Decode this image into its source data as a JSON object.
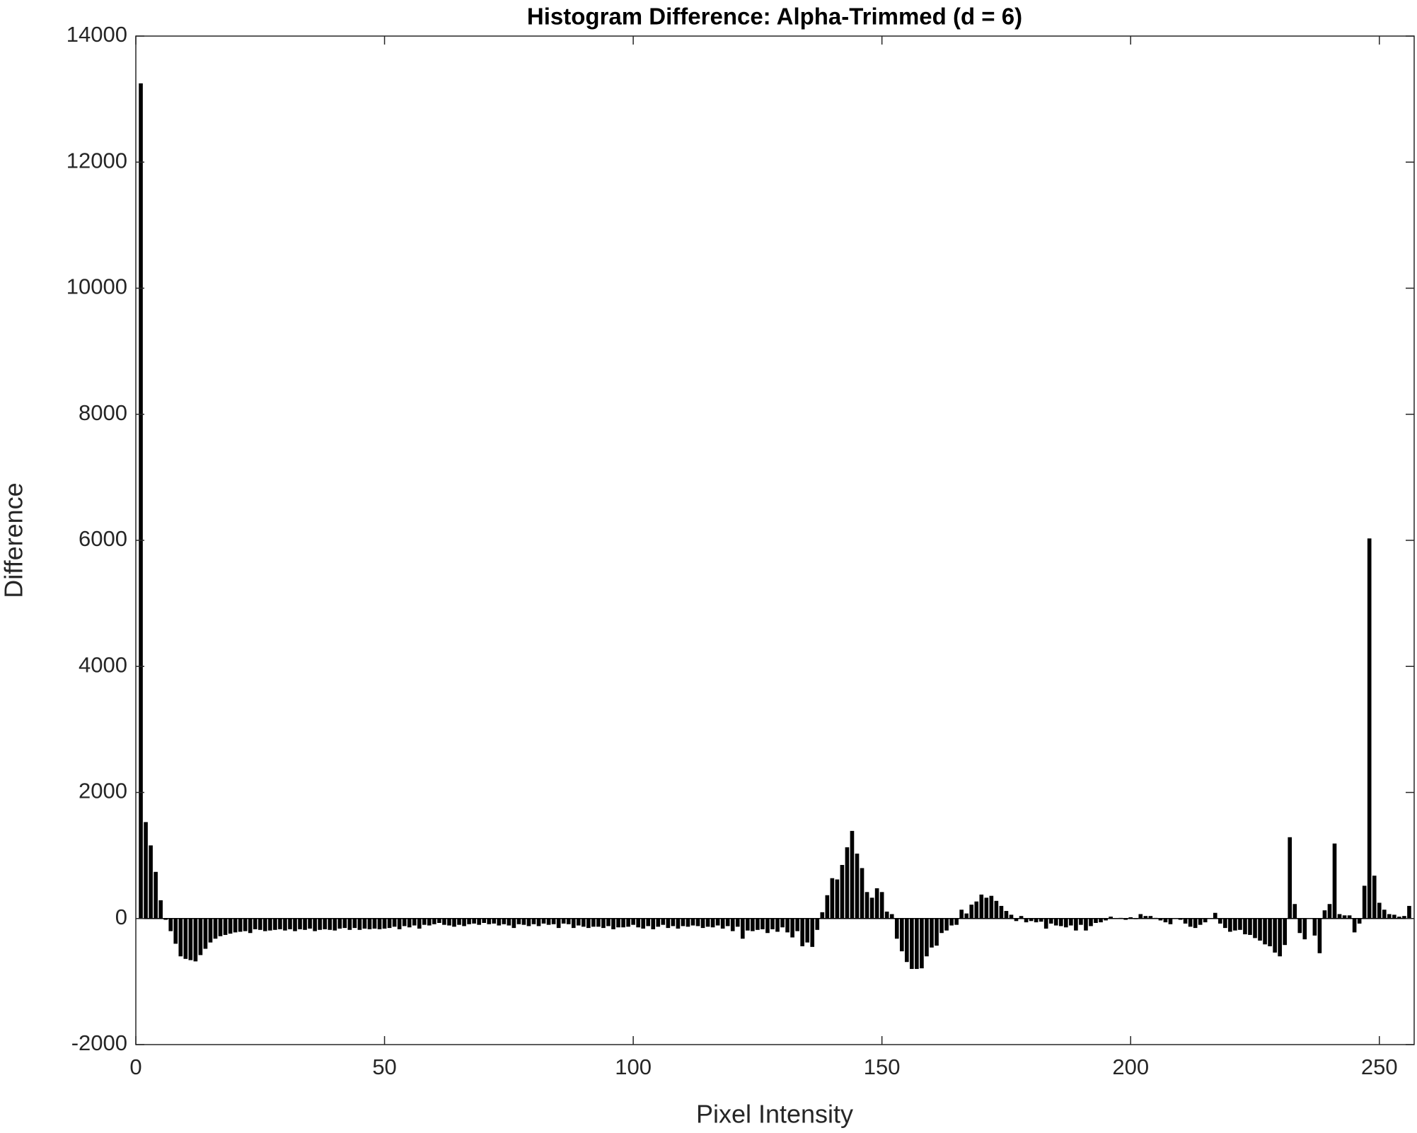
{
  "chart_data": {
    "type": "bar",
    "title": "Histogram Difference: Alpha-Trimmed (d = 6)",
    "x_label": "Pixel Intensity",
    "y_label": "Difference",
    "color": "#000000",
    "xlim": [
      0,
      257
    ],
    "ylim": [
      -2000,
      14000
    ],
    "xticks": [
      0,
      50,
      100,
      150,
      200,
      250
    ],
    "yticks": [
      -2000,
      0,
      2000,
      4000,
      6000,
      8000,
      10000,
      12000,
      14000
    ],
    "grid": false,
    "x": [
      1,
      2,
      3,
      4,
      5,
      6,
      7,
      8,
      9,
      10,
      11,
      12,
      13,
      14,
      15,
      16,
      17,
      18,
      19,
      20,
      21,
      22,
      23,
      24,
      25,
      26,
      27,
      28,
      29,
      30,
      31,
      32,
      33,
      34,
      35,
      36,
      37,
      38,
      39,
      40,
      41,
      42,
      43,
      44,
      45,
      46,
      47,
      48,
      49,
      50,
      51,
      52,
      53,
      54,
      55,
      56,
      57,
      58,
      59,
      60,
      61,
      62,
      63,
      64,
      65,
      66,
      67,
      68,
      69,
      70,
      71,
      72,
      73,
      74,
      75,
      76,
      77,
      78,
      79,
      80,
      81,
      82,
      83,
      84,
      85,
      86,
      87,
      88,
      89,
      90,
      91,
      92,
      93,
      94,
      95,
      96,
      97,
      98,
      99,
      100,
      101,
      102,
      103,
      104,
      105,
      106,
      107,
      108,
      109,
      110,
      111,
      112,
      113,
      114,
      115,
      116,
      117,
      118,
      119,
      120,
      121,
      122,
      123,
      124,
      125,
      126,
      127,
      128,
      129,
      130,
      131,
      132,
      133,
      134,
      135,
      136,
      137,
      138,
      139,
      140,
      141,
      142,
      143,
      144,
      145,
      146,
      147,
      148,
      149,
      150,
      151,
      152,
      153,
      154,
      155,
      156,
      157,
      158,
      159,
      160,
      161,
      162,
      163,
      164,
      165,
      166,
      167,
      168,
      169,
      170,
      171,
      172,
      173,
      174,
      175,
      176,
      177,
      178,
      179,
      180,
      181,
      182,
      183,
      184,
      185,
      186,
      187,
      188,
      189,
      190,
      191,
      192,
      193,
      194,
      195,
      196,
      197,
      198,
      199,
      200,
      201,
      202,
      203,
      204,
      205,
      206,
      207,
      208,
      209,
      210,
      211,
      212,
      213,
      214,
      215,
      216,
      217,
      218,
      219,
      220,
      221,
      222,
      223,
      224,
      225,
      226,
      227,
      228,
      229,
      230,
      231,
      232,
      233,
      234,
      235,
      236,
      237,
      238,
      239,
      240,
      241,
      242,
      243,
      244,
      245,
      246,
      247,
      248,
      249,
      250,
      251,
      252,
      253,
      254,
      255,
      256
    ],
    "values": [
      13250,
      1530,
      1160,
      740,
      290,
      -20,
      -200,
      -400,
      -600,
      -640,
      -660,
      -680,
      -580,
      -480,
      -380,
      -320,
      -280,
      -260,
      -240,
      -220,
      -210,
      -200,
      -230,
      -170,
      -180,
      -200,
      -190,
      -180,
      -170,
      -190,
      -170,
      -200,
      -170,
      -180,
      -160,
      -200,
      -180,
      -170,
      -180,
      -190,
      -160,
      -150,
      -180,
      -150,
      -180,
      -160,
      -170,
      -160,
      -170,
      -160,
      -150,
      -130,
      -170,
      -120,
      -140,
      -110,
      -160,
      -100,
      -110,
      -90,
      -70,
      -100,
      -110,
      -130,
      -100,
      -120,
      -90,
      -80,
      -100,
      -70,
      -90,
      -80,
      -110,
      -90,
      -110,
      -150,
      -90,
      -100,
      -120,
      -90,
      -120,
      -80,
      -100,
      -90,
      -150,
      -80,
      -90,
      -150,
      -110,
      -130,
      -150,
      -130,
      -130,
      -150,
      -120,
      -170,
      -140,
      -140,
      -130,
      -100,
      -140,
      -160,
      -120,
      -170,
      -130,
      -100,
      -150,
      -120,
      -160,
      -120,
      -130,
      -110,
      -120,
      -150,
      -130,
      -140,
      -110,
      -160,
      -120,
      -200,
      -130,
      -320,
      -190,
      -200,
      -180,
      -170,
      -230,
      -170,
      -210,
      -140,
      -220,
      -300,
      -200,
      -440,
      -380,
      -450,
      -180,
      100,
      370,
      640,
      620,
      850,
      1130,
      1390,
      1030,
      800,
      420,
      330,
      480,
      420,
      110,
      70,
      -320,
      -520,
      -690,
      -800,
      -800,
      -790,
      -600,
      -460,
      -430,
      -230,
      -190,
      -110,
      -100,
      140,
      80,
      220,
      270,
      380,
      330,
      360,
      280,
      200,
      120,
      60,
      -40,
      40,
      -60,
      -40,
      -60,
      -50,
      -160,
      -80,
      -110,
      -120,
      -140,
      -110,
      -190,
      -100,
      -190,
      -120,
      -70,
      -60,
      -30,
      30,
      0,
      10,
      -20,
      20,
      -10,
      70,
      40,
      40,
      10,
      -30,
      -60,
      -90,
      0,
      -20,
      -80,
      -130,
      -150,
      -100,
      -60,
      0,
      90,
      -80,
      -150,
      -210,
      -190,
      -180,
      -250,
      -260,
      -310,
      -350,
      -410,
      -440,
      -540,
      -600,
      -420,
      1290,
      230,
      -230,
      -330,
      0,
      -270,
      -550,
      130,
      230,
      1190,
      70,
      50,
      50,
      -220,
      -80,
      520,
      6030,
      680,
      250,
      140,
      70,
      60,
      30,
      40,
      200
    ]
  }
}
